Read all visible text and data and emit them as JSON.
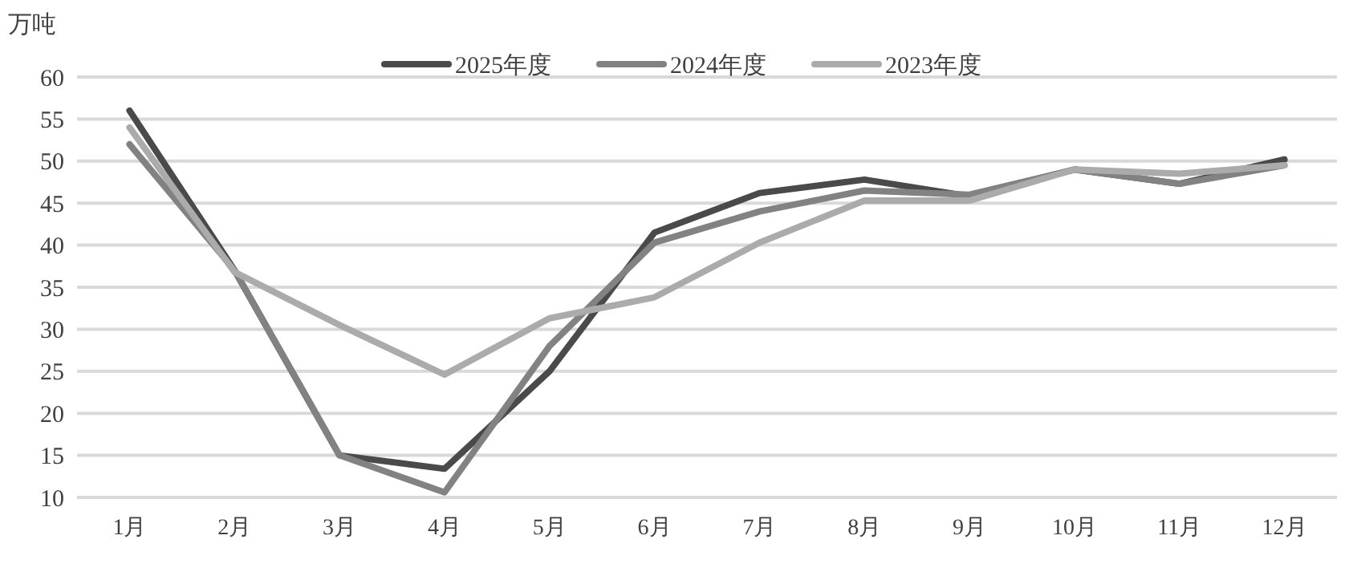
{
  "chart_data": {
    "type": "line",
    "ylabel": "万吨",
    "categories": [
      "1月",
      "2月",
      "3月",
      "4月",
      "5月",
      "6月",
      "7月",
      "8月",
      "9月",
      "10月",
      "11月",
      "12月"
    ],
    "series": [
      {
        "name": "2025年度",
        "color": "#4a4a4a",
        "values": [
          56,
          37,
          15,
          13.4,
          25,
          41.5,
          46.2,
          47.8,
          45.8,
          49,
          47.3,
          50.2
        ]
      },
      {
        "name": "2024年度",
        "color": "#828282",
        "values": [
          52,
          37,
          15,
          10.6,
          28,
          40.3,
          44,
          46.5,
          46,
          49,
          47.3,
          49.5
        ]
      },
      {
        "name": "2023年度",
        "color": "#ababab",
        "values": [
          54,
          36.8,
          30.5,
          24.6,
          31.3,
          33.8,
          40.3,
          45.3,
          45.3,
          49,
          48.5,
          49.5
        ]
      }
    ],
    "ylim": [
      10,
      60
    ],
    "yticks": [
      10,
      15,
      20,
      25,
      30,
      35,
      40,
      45,
      50,
      55,
      60
    ],
    "grid": "y",
    "legend": "top",
    "line_style": "solid"
  }
}
